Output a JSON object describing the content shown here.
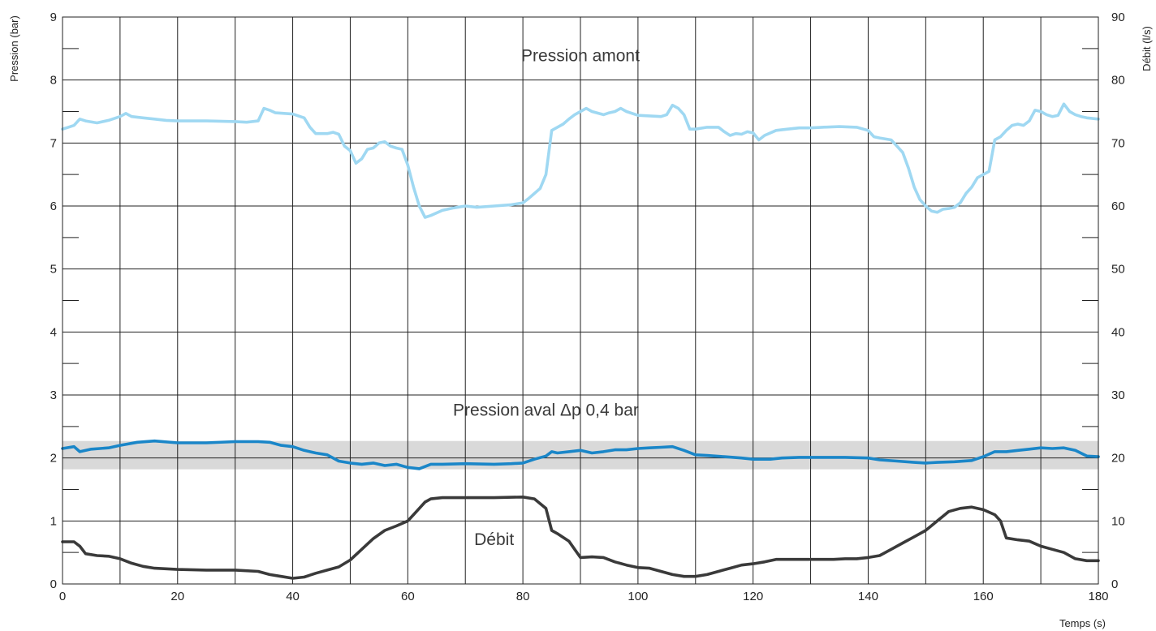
{
  "chart_data": {
    "type": "line",
    "title": "",
    "xlabel": "Temps (s)",
    "ylabel_left": "Pression (bar)",
    "ylabel_right": "Débit (l/s)",
    "xlim": [
      0,
      180
    ],
    "ylim_left": [
      0,
      9
    ],
    "ylim_right": [
      0,
      90
    ],
    "x_ticks": [
      0,
      20,
      40,
      60,
      80,
      100,
      120,
      140,
      160,
      180
    ],
    "y_ticks_left": [
      0,
      1,
      2,
      3,
      4,
      5,
      6,
      7,
      8,
      9
    ],
    "y_ticks_right": [
      0,
      10,
      20,
      30,
      40,
      50,
      60,
      70,
      80,
      90
    ],
    "grid": true,
    "band": {
      "axis": "left",
      "from": 1.82,
      "to": 2.27,
      "color": "#d9d9d9"
    },
    "annotations": [
      {
        "text": "Pression amont",
        "x": 90,
        "y": 8.3
      },
      {
        "text": "Pression aval Δp 0,4 bar",
        "x": 84,
        "y": 2.67
      },
      {
        "text": "Débit",
        "x": 75,
        "y": 0.62
      }
    ],
    "series": [
      {
        "axis": "left",
        "color": "#9fd8f2",
        "points": [
          [
            0,
            7.22
          ],
          [
            1,
            7.25
          ],
          [
            2,
            7.28
          ],
          [
            3,
            7.38
          ],
          [
            4,
            7.35
          ],
          [
            6,
            7.32
          ],
          [
            8,
            7.36
          ],
          [
            10,
            7.42
          ],
          [
            11,
            7.47
          ],
          [
            12,
            7.42
          ],
          [
            14,
            7.4
          ],
          [
            16,
            7.38
          ],
          [
            18,
            7.36
          ],
          [
            20,
            7.35
          ],
          [
            25,
            7.35
          ],
          [
            30,
            7.34
          ],
          [
            32,
            7.33
          ],
          [
            34,
            7.35
          ],
          [
            35,
            7.55
          ],
          [
            36,
            7.52
          ],
          [
            37,
            7.48
          ],
          [
            40,
            7.46
          ],
          [
            42,
            7.4
          ],
          [
            43,
            7.25
          ],
          [
            44,
            7.15
          ],
          [
            46,
            7.15
          ],
          [
            47,
            7.17
          ],
          [
            48,
            7.14
          ],
          [
            49,
            6.95
          ],
          [
            50,
            6.88
          ],
          [
            51,
            6.68
          ],
          [
            52,
            6.75
          ],
          [
            53,
            6.9
          ],
          [
            54,
            6.92
          ],
          [
            55,
            7.0
          ],
          [
            56,
            7.02
          ],
          [
            57,
            6.95
          ],
          [
            58,
            6.92
          ],
          [
            59,
            6.9
          ],
          [
            60,
            6.65
          ],
          [
            61,
            6.3
          ],
          [
            62,
            6.0
          ],
          [
            63,
            5.82
          ],
          [
            64,
            5.85
          ],
          [
            66,
            5.93
          ],
          [
            68,
            5.97
          ],
          [
            70,
            6.0
          ],
          [
            72,
            5.98
          ],
          [
            75,
            6.0
          ],
          [
            78,
            6.02
          ],
          [
            80,
            6.05
          ],
          [
            81,
            6.12
          ],
          [
            82,
            6.2
          ],
          [
            83,
            6.28
          ],
          [
            84,
            6.5
          ],
          [
            85,
            7.2
          ],
          [
            86,
            7.25
          ],
          [
            87,
            7.3
          ],
          [
            88,
            7.38
          ],
          [
            89,
            7.45
          ],
          [
            90,
            7.5
          ],
          [
            91,
            7.55
          ],
          [
            92,
            7.5
          ],
          [
            94,
            7.45
          ],
          [
            95,
            7.48
          ],
          [
            96,
            7.5
          ],
          [
            97,
            7.55
          ],
          [
            98,
            7.5
          ],
          [
            100,
            7.44
          ],
          [
            102,
            7.43
          ],
          [
            104,
            7.42
          ],
          [
            105,
            7.45
          ],
          [
            106,
            7.6
          ],
          [
            107,
            7.55
          ],
          [
            108,
            7.45
          ],
          [
            109,
            7.22
          ],
          [
            110,
            7.22
          ],
          [
            112,
            7.25
          ],
          [
            114,
            7.25
          ],
          [
            115,
            7.18
          ],
          [
            116,
            7.12
          ],
          [
            117,
            7.15
          ],
          [
            118,
            7.14
          ],
          [
            119,
            7.18
          ],
          [
            120,
            7.16
          ],
          [
            121,
            7.05
          ],
          [
            122,
            7.12
          ],
          [
            124,
            7.2
          ],
          [
            126,
            7.22
          ],
          [
            128,
            7.24
          ],
          [
            130,
            7.24
          ],
          [
            132,
            7.25
          ],
          [
            135,
            7.26
          ],
          [
            138,
            7.25
          ],
          [
            140,
            7.2
          ],
          [
            141,
            7.1
          ],
          [
            142,
            7.08
          ],
          [
            144,
            7.05
          ],
          [
            145,
            6.95
          ],
          [
            146,
            6.85
          ],
          [
            147,
            6.6
          ],
          [
            148,
            6.3
          ],
          [
            149,
            6.1
          ],
          [
            150,
            6.0
          ],
          [
            151,
            5.92
          ],
          [
            152,
            5.9
          ],
          [
            153,
            5.95
          ],
          [
            154,
            5.96
          ],
          [
            155,
            5.98
          ],
          [
            156,
            6.05
          ],
          [
            157,
            6.2
          ],
          [
            158,
            6.3
          ],
          [
            159,
            6.45
          ],
          [
            160,
            6.5
          ],
          [
            161,
            6.55
          ],
          [
            162,
            7.05
          ],
          [
            163,
            7.1
          ],
          [
            164,
            7.2
          ],
          [
            165,
            7.28
          ],
          [
            166,
            7.3
          ],
          [
            167,
            7.28
          ],
          [
            168,
            7.35
          ],
          [
            169,
            7.52
          ],
          [
            170,
            7.5
          ],
          [
            171,
            7.45
          ],
          [
            172,
            7.42
          ],
          [
            173,
            7.44
          ],
          [
            174,
            7.62
          ],
          [
            175,
            7.5
          ],
          [
            176,
            7.45
          ],
          [
            177,
            7.42
          ],
          [
            178,
            7.4
          ],
          [
            180,
            7.38
          ]
        ]
      },
      {
        "axis": "left",
        "color": "#1a86c8",
        "points": [
          [
            0,
            2.15
          ],
          [
            2,
            2.18
          ],
          [
            3,
            2.1
          ],
          [
            5,
            2.14
          ],
          [
            8,
            2.16
          ],
          [
            10,
            2.2
          ],
          [
            13,
            2.25
          ],
          [
            16,
            2.27
          ],
          [
            20,
            2.24
          ],
          [
            25,
            2.24
          ],
          [
            30,
            2.26
          ],
          [
            34,
            2.26
          ],
          [
            36,
            2.25
          ],
          [
            38,
            2.2
          ],
          [
            40,
            2.18
          ],
          [
            42,
            2.12
          ],
          [
            44,
            2.08
          ],
          [
            46,
            2.05
          ],
          [
            48,
            1.95
          ],
          [
            50,
            1.92
          ],
          [
            52,
            1.9
          ],
          [
            54,
            1.92
          ],
          [
            56,
            1.88
          ],
          [
            58,
            1.9
          ],
          [
            60,
            1.85
          ],
          [
            62,
            1.83
          ],
          [
            64,
            1.9
          ],
          [
            66,
            1.9
          ],
          [
            70,
            1.91
          ],
          [
            75,
            1.9
          ],
          [
            78,
            1.91
          ],
          [
            80,
            1.92
          ],
          [
            82,
            1.98
          ],
          [
            84,
            2.03
          ],
          [
            85,
            2.1
          ],
          [
            86,
            2.08
          ],
          [
            88,
            2.1
          ],
          [
            90,
            2.12
          ],
          [
            92,
            2.08
          ],
          [
            94,
            2.1
          ],
          [
            96,
            2.13
          ],
          [
            98,
            2.13
          ],
          [
            100,
            2.15
          ],
          [
            102,
            2.16
          ],
          [
            104,
            2.17
          ],
          [
            106,
            2.18
          ],
          [
            108,
            2.12
          ],
          [
            110,
            2.05
          ],
          [
            112,
            2.04
          ],
          [
            115,
            2.02
          ],
          [
            118,
            2.0
          ],
          [
            120,
            1.98
          ],
          [
            123,
            1.98
          ],
          [
            125,
            2.0
          ],
          [
            128,
            2.01
          ],
          [
            132,
            2.01
          ],
          [
            136,
            2.01
          ],
          [
            140,
            2.0
          ],
          [
            142,
            1.97
          ],
          [
            145,
            1.95
          ],
          [
            148,
            1.93
          ],
          [
            150,
            1.92
          ],
          [
            152,
            1.93
          ],
          [
            155,
            1.94
          ],
          [
            158,
            1.96
          ],
          [
            160,
            2.02
          ],
          [
            162,
            2.1
          ],
          [
            164,
            2.1
          ],
          [
            166,
            2.12
          ],
          [
            168,
            2.14
          ],
          [
            170,
            2.16
          ],
          [
            172,
            2.15
          ],
          [
            174,
            2.16
          ],
          [
            176,
            2.12
          ],
          [
            178,
            2.03
          ],
          [
            180,
            2.02
          ]
        ]
      },
      {
        "axis": "left",
        "color": "#3a3a3a",
        "points": [
          [
            0,
            0.67
          ],
          [
            2,
            0.67
          ],
          [
            3,
            0.6
          ],
          [
            4,
            0.48
          ],
          [
            6,
            0.45
          ],
          [
            8,
            0.44
          ],
          [
            10,
            0.4
          ],
          [
            12,
            0.33
          ],
          [
            14,
            0.28
          ],
          [
            16,
            0.25
          ],
          [
            20,
            0.23
          ],
          [
            25,
            0.22
          ],
          [
            30,
            0.22
          ],
          [
            34,
            0.2
          ],
          [
            36,
            0.15
          ],
          [
            38,
            0.12
          ],
          [
            40,
            0.09
          ],
          [
            42,
            0.11
          ],
          [
            44,
            0.17
          ],
          [
            46,
            0.22
          ],
          [
            48,
            0.27
          ],
          [
            50,
            0.38
          ],
          [
            52,
            0.55
          ],
          [
            54,
            0.72
          ],
          [
            56,
            0.85
          ],
          [
            58,
            0.92
          ],
          [
            60,
            1.0
          ],
          [
            61,
            1.1
          ],
          [
            62,
            1.2
          ],
          [
            63,
            1.3
          ],
          [
            64,
            1.35
          ],
          [
            66,
            1.37
          ],
          [
            70,
            1.37
          ],
          [
            75,
            1.37
          ],
          [
            80,
            1.38
          ],
          [
            82,
            1.35
          ],
          [
            84,
            1.2
          ],
          [
            85,
            0.85
          ],
          [
            86,
            0.8
          ],
          [
            88,
            0.68
          ],
          [
            89,
            0.55
          ],
          [
            90,
            0.42
          ],
          [
            92,
            0.43
          ],
          [
            94,
            0.42
          ],
          [
            96,
            0.35
          ],
          [
            98,
            0.3
          ],
          [
            100,
            0.26
          ],
          [
            102,
            0.25
          ],
          [
            104,
            0.2
          ],
          [
            106,
            0.15
          ],
          [
            108,
            0.12
          ],
          [
            110,
            0.12
          ],
          [
            112,
            0.15
          ],
          [
            114,
            0.2
          ],
          [
            116,
            0.25
          ],
          [
            118,
            0.3
          ],
          [
            120,
            0.32
          ],
          [
            122,
            0.35
          ],
          [
            124,
            0.39
          ],
          [
            126,
            0.39
          ],
          [
            130,
            0.39
          ],
          [
            134,
            0.39
          ],
          [
            136,
            0.4
          ],
          [
            138,
            0.4
          ],
          [
            140,
            0.42
          ],
          [
            142,
            0.45
          ],
          [
            144,
            0.55
          ],
          [
            146,
            0.65
          ],
          [
            148,
            0.75
          ],
          [
            150,
            0.85
          ],
          [
            152,
            1.0
          ],
          [
            154,
            1.15
          ],
          [
            156,
            1.2
          ],
          [
            158,
            1.22
          ],
          [
            160,
            1.18
          ],
          [
            162,
            1.1
          ],
          [
            163,
            1.0
          ],
          [
            164,
            0.73
          ],
          [
            166,
            0.7
          ],
          [
            168,
            0.68
          ],
          [
            170,
            0.6
          ],
          [
            172,
            0.55
          ],
          [
            174,
            0.5
          ],
          [
            176,
            0.4
          ],
          [
            178,
            0.37
          ],
          [
            180,
            0.37
          ]
        ]
      }
    ]
  }
}
